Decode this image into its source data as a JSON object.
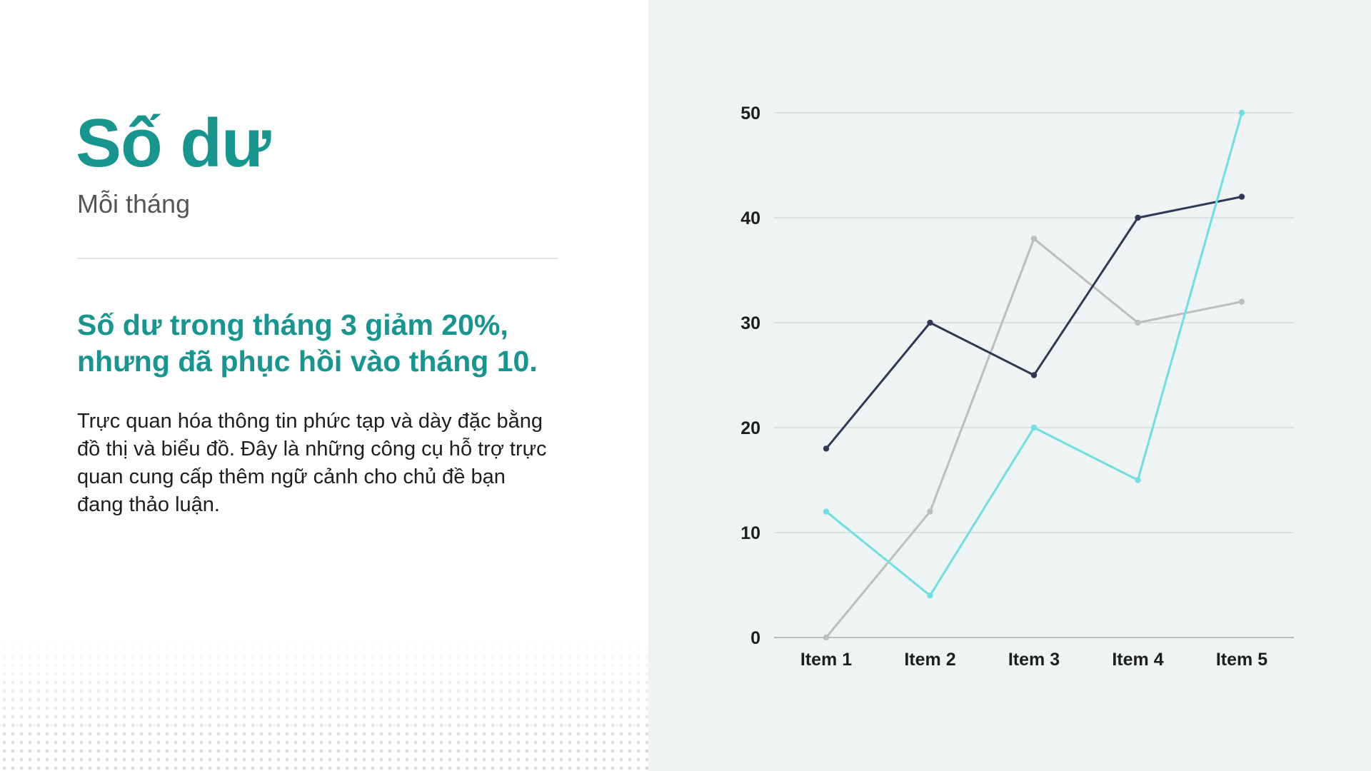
{
  "slide": {
    "title": "Số dư",
    "subtitle": "Mỗi tháng",
    "headline": "Số dư trong tháng 3 giảm 20%, nhưng đã phục hồi vào tháng 10.",
    "body": "Trực quan hóa thông tin phức tạp và dày đặc bằng đồ thị và biểu đồ. Đây là những công cụ hỗ trợ trực quan cung cấp thêm ngữ cảnh cho chủ đề bạn đang thảo luận."
  },
  "colors": {
    "accent": "#17958f",
    "panel_background": "#eef3f3",
    "series_1": "#2e3a55",
    "series_2": "#bebebe",
    "series_3": "#6fdfe2",
    "gridline": "#cfd6d6"
  },
  "chart_data": {
    "type": "line",
    "categories": [
      "Item 1",
      "Item 2",
      "Item 3",
      "Item 4",
      "Item 5"
    ],
    "series": [
      {
        "values": [
          18,
          30,
          25,
          40,
          42
        ]
      },
      {
        "values": [
          0,
          12,
          38,
          30,
          32
        ]
      },
      {
        "values": [
          12,
          4,
          20,
          15,
          50
        ]
      }
    ],
    "yticks": [
      0,
      10,
      20,
      30,
      40,
      50
    ],
    "ylim": [
      0,
      50
    ],
    "grid": true,
    "legend": "none",
    "title": "",
    "xlabel": "",
    "ylabel": ""
  }
}
